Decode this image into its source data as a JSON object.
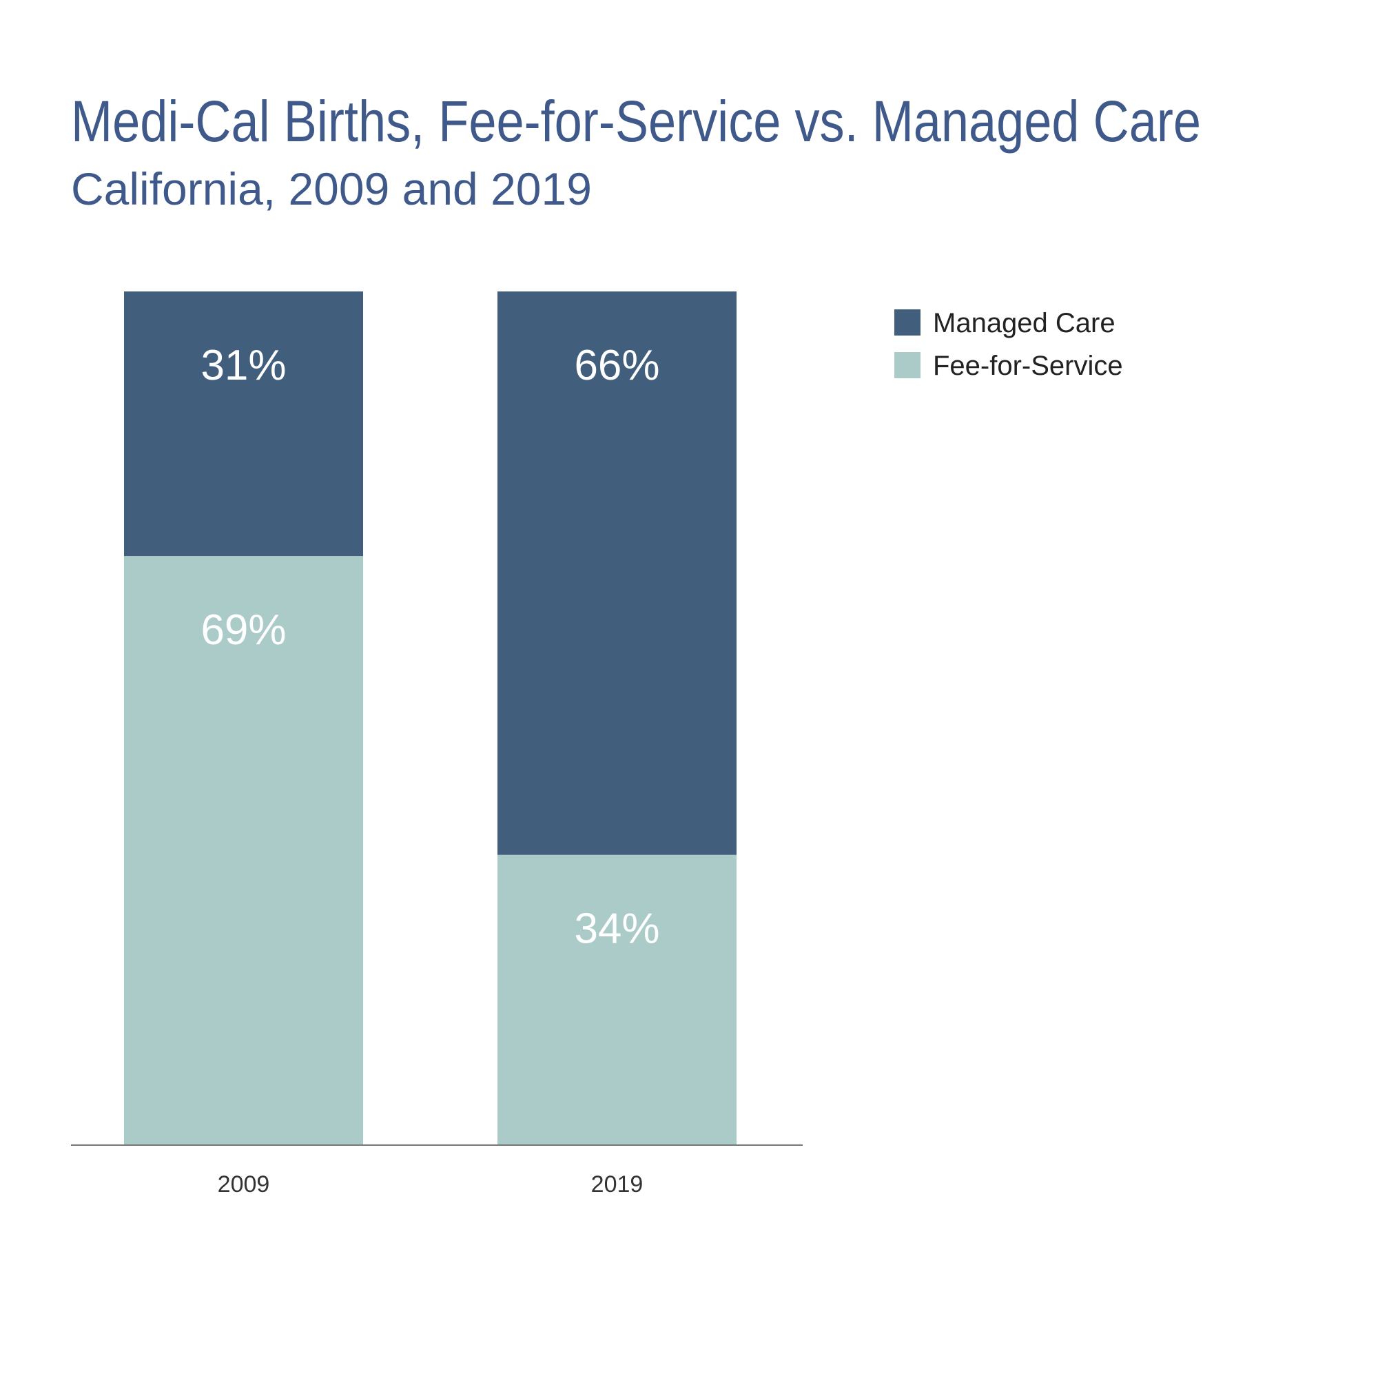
{
  "chart_data": {
    "type": "bar",
    "stacked": true,
    "title": "Medi-Cal Births, Fee-for-Service vs. Managed Care",
    "subtitle": "California, 2009 and 2019",
    "categories": [
      "2009",
      "2019"
    ],
    "series": [
      {
        "name": "Fee-for-Service",
        "values": [
          69,
          34
        ],
        "labels": [
          "69%",
          "34%"
        ],
        "color": "#abcbc9"
      },
      {
        "name": "Managed Care",
        "values": [
          31,
          66
        ],
        "labels": [
          "31%",
          "66%"
        ],
        "color": "#425e7d"
      }
    ],
    "legend": {
      "position": "top-right",
      "items": [
        {
          "name": "Managed Care",
          "color": "#425e7d"
        },
        {
          "name": "Fee-for-Service",
          "color": "#abcbc9"
        }
      ]
    },
    "ylim": [
      0,
      100
    ],
    "unit": "%",
    "grid": false,
    "xlabel": "",
    "ylabel": ""
  }
}
